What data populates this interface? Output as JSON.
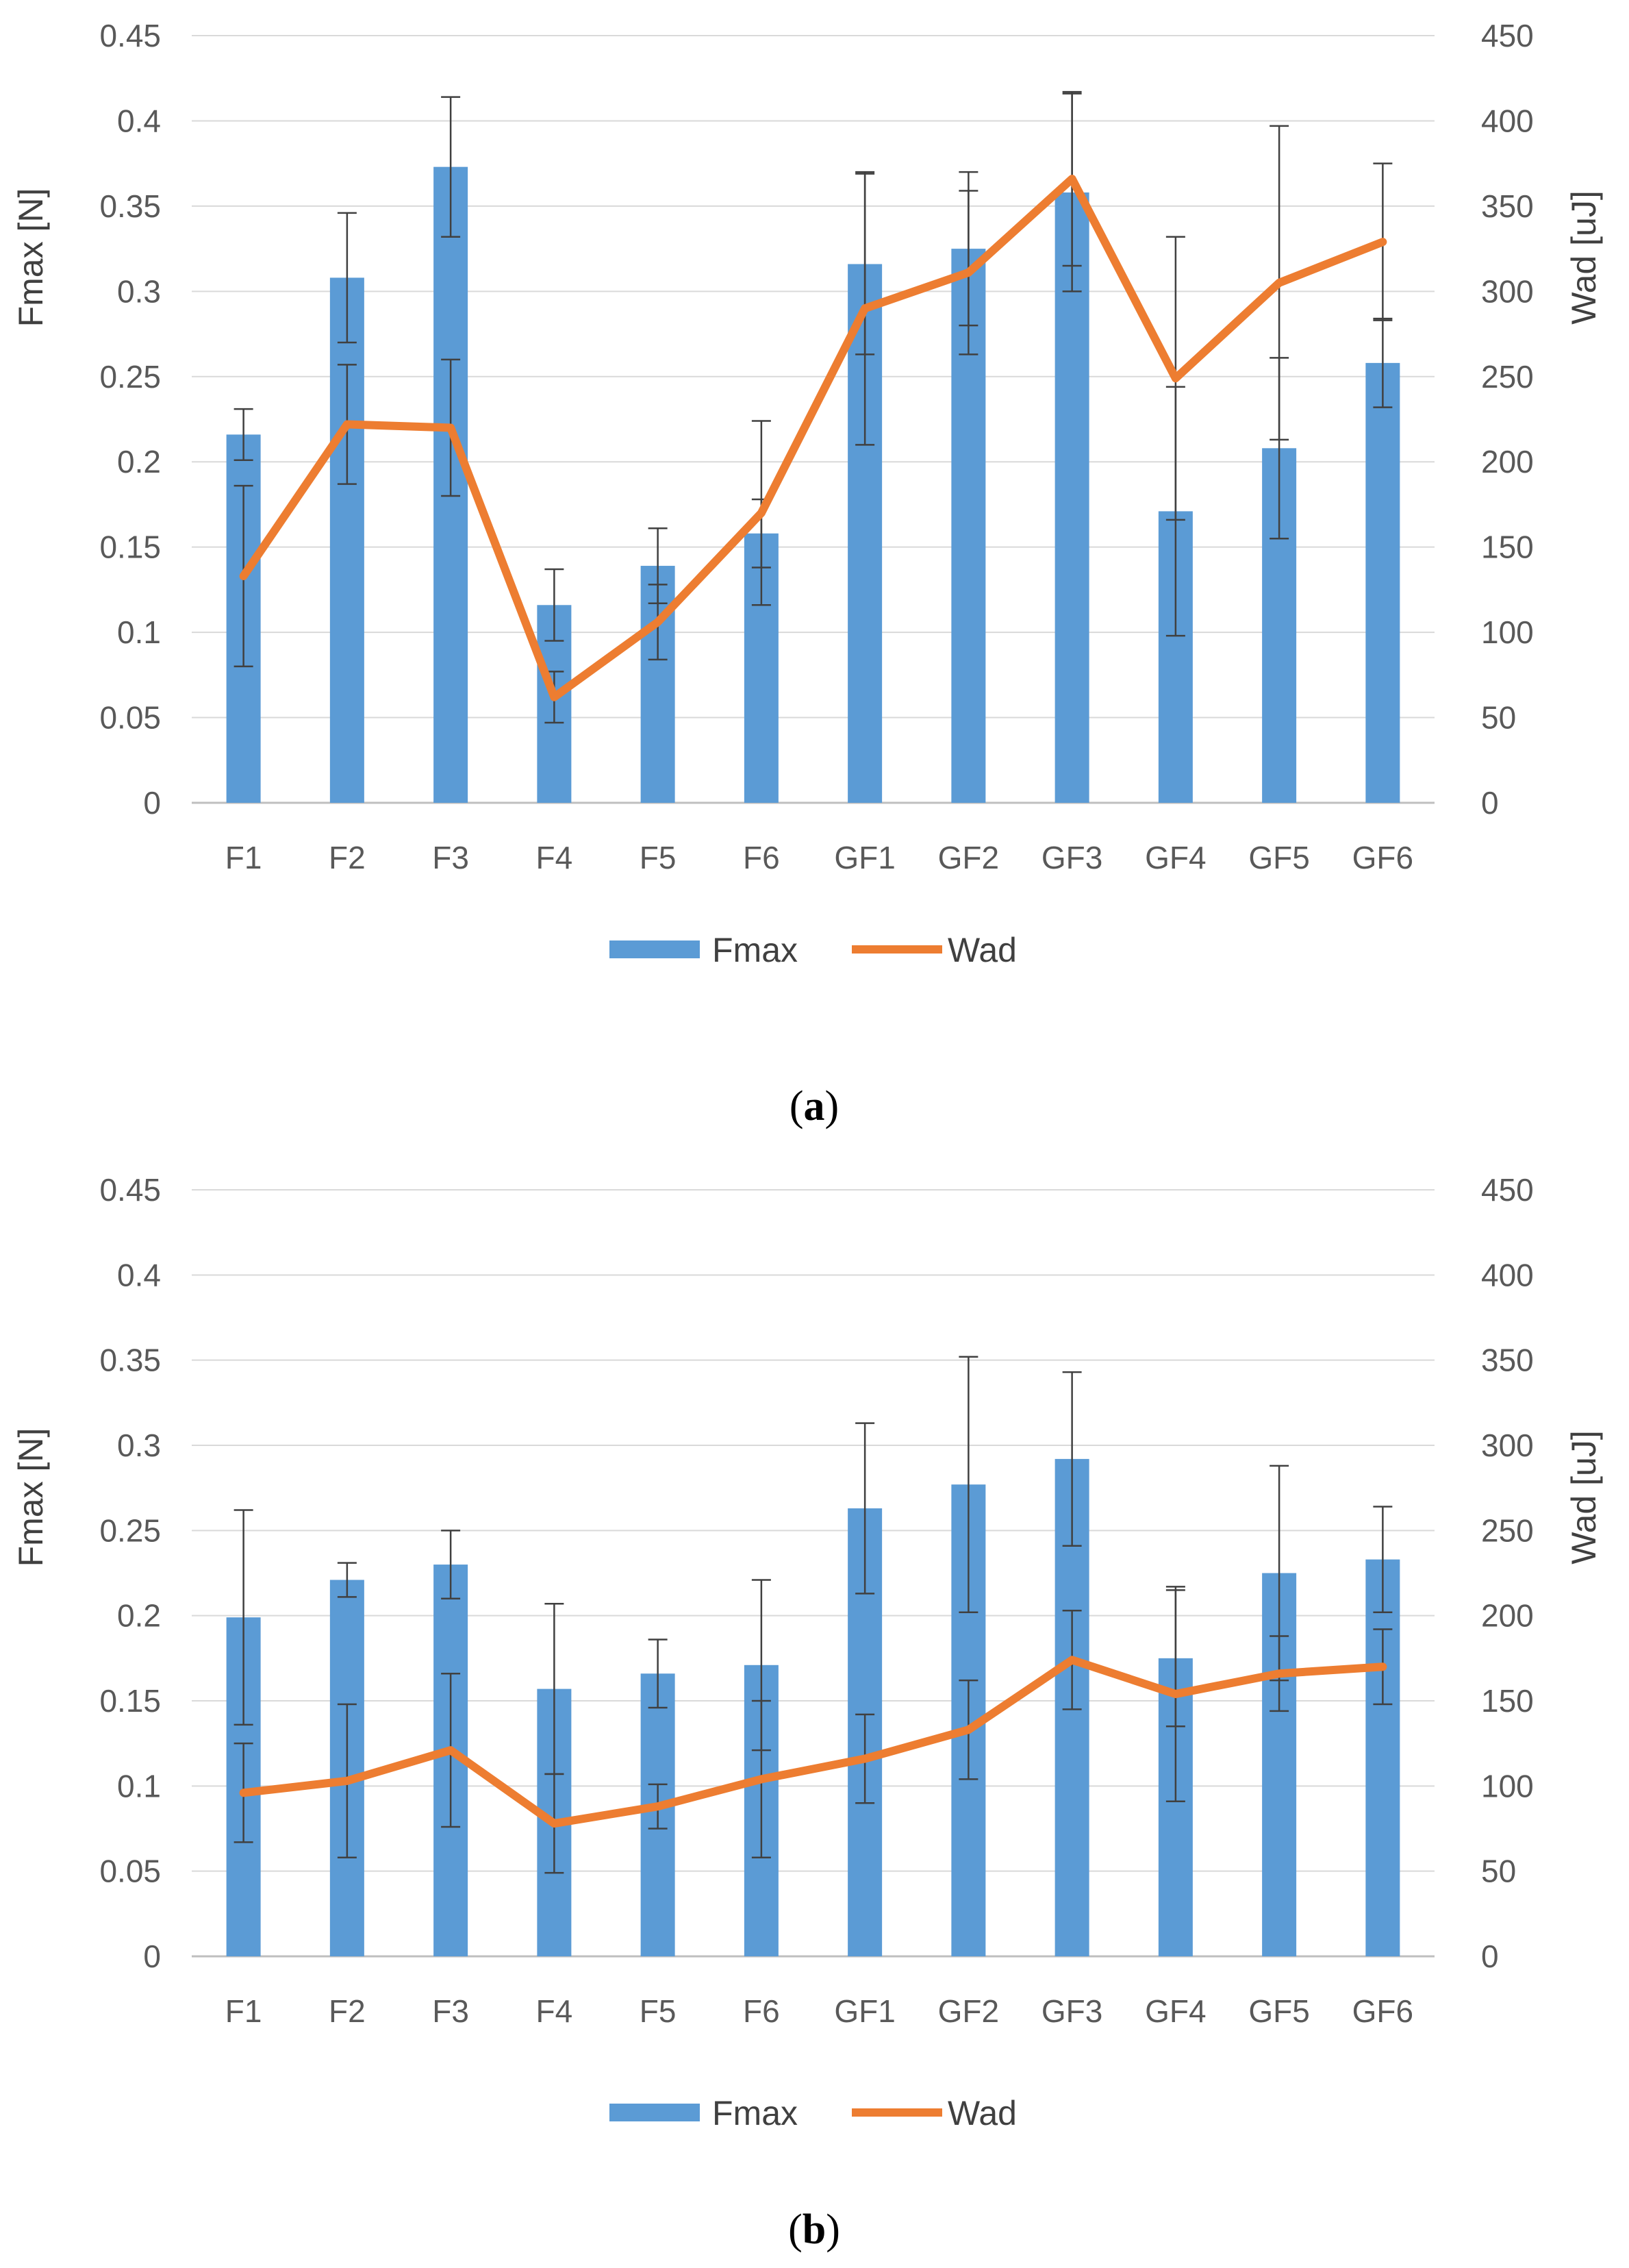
{
  "colors": {
    "bar": "#5b9bd5",
    "line": "#ed7d31",
    "grid": "#d9d9d9",
    "axis": "#bfbfbf",
    "error_bar": "#404040"
  },
  "chart_data": [
    {
      "panel": "a",
      "type": "bar",
      "categories": [
        "F1",
        "F2",
        "F3",
        "F4",
        "F5",
        "F6",
        "GF1",
        "GF2",
        "GF3",
        "GF4",
        "GF5",
        "GF6"
      ],
      "y_left": {
        "label": "Fmax [N]",
        "lim": [
          0,
          0.45
        ],
        "ticks": [
          "0",
          "0.05",
          "0.1",
          "0.15",
          "0.2",
          "0.25",
          "0.3",
          "0.35",
          "0.4",
          "0.45"
        ]
      },
      "y_right": {
        "label": "Wad [uJ]",
        "lim": [
          0,
          450
        ],
        "ticks": [
          "0",
          "50",
          "100",
          "150",
          "200",
          "250",
          "300",
          "350",
          "400",
          "450"
        ]
      },
      "series": [
        {
          "name": "Fmax",
          "type": "bar",
          "axis": "left",
          "values": [
            0.216,
            0.308,
            0.373,
            0.116,
            0.139,
            0.158,
            0.316,
            0.325,
            0.358,
            0.171,
            0.208,
            0.258
          ],
          "errors": [
            0.015,
            0.038,
            0.041,
            0.021,
            0.022,
            0.02,
            0.053,
            0.045,
            0.058,
            0.073,
            0.053,
            0.026
          ]
        },
        {
          "name": "Wad",
          "type": "line",
          "axis": "right",
          "values": [
            133,
            222,
            220,
            62,
            106,
            170,
            290,
            311,
            366,
            249,
            305,
            329
          ],
          "errors": [
            53,
            35,
            40,
            15,
            22,
            54,
            80,
            48,
            51,
            83,
            92,
            46
          ]
        }
      ],
      "legend": [
        "Fmax",
        "Wad"
      ]
    },
    {
      "panel": "b",
      "type": "bar",
      "categories": [
        "F1",
        "F2",
        "F3",
        "F4",
        "F5",
        "F6",
        "GF1",
        "GF2",
        "GF3",
        "GF4",
        "GF5",
        "GF6"
      ],
      "y_left": {
        "label": "Fmax [N]",
        "lim": [
          0,
          0.45
        ],
        "ticks": [
          "0",
          "0.05",
          "0.1",
          "0.15",
          "0.2",
          "0.25",
          "0.3",
          "0.35",
          "0.4",
          "0.45"
        ]
      },
      "y_right": {
        "label": "Wad [uJ]",
        "lim": [
          0,
          450
        ],
        "ticks": [
          "0",
          "50",
          "100",
          "150",
          "200",
          "250",
          "300",
          "350",
          "400",
          "450"
        ]
      },
      "series": [
        {
          "name": "Fmax",
          "type": "bar",
          "axis": "left",
          "values": [
            0.199,
            0.221,
            0.23,
            0.157,
            0.166,
            0.171,
            0.263,
            0.277,
            0.292,
            0.175,
            0.225,
            0.233
          ],
          "errors": [
            0.063,
            0.01,
            0.02,
            0.05,
            0.02,
            0.05,
            0.05,
            0.075,
            0.051,
            0.04,
            0.063,
            0.031
          ]
        },
        {
          "name": "Wad",
          "type": "line",
          "axis": "right",
          "values": [
            96,
            103,
            121,
            78,
            88,
            104,
            116,
            133,
            174,
            154,
            166,
            170
          ],
          "errors": [
            29,
            45,
            45,
            29,
            13,
            46,
            26,
            29,
            29,
            63,
            22,
            22
          ]
        }
      ],
      "legend": [
        "Fmax",
        "Wad"
      ]
    }
  ],
  "panel_labels": [
    {
      "open": "(",
      "letter": "a",
      "close": ")"
    },
    {
      "open": "(",
      "letter": "b",
      "close": ")"
    }
  ]
}
